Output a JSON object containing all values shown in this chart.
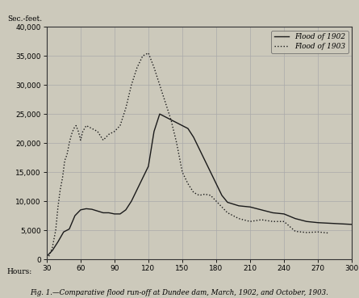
{
  "title": "Fig. 1.—Comparative flood run-off at Dundee dam, March, 1902, and October, 1903.",
  "ylabel": "Sec.-feet.",
  "xlabel": "Hours:",
  "xlim": [
    30,
    300
  ],
  "ylim": [
    0,
    40000
  ],
  "xticks": [
    30,
    60,
    90,
    120,
    150,
    180,
    210,
    240,
    270,
    300
  ],
  "yticks": [
    0,
    5000,
    10000,
    15000,
    20000,
    25000,
    30000,
    35000,
    40000
  ],
  "bg_color": "#ccc9bb",
  "flood_1902_x": [
    30,
    35,
    40,
    45,
    50,
    55,
    60,
    65,
    70,
    75,
    80,
    85,
    90,
    95,
    100,
    105,
    110,
    115,
    120,
    125,
    130,
    135,
    140,
    145,
    150,
    155,
    160,
    165,
    170,
    175,
    180,
    185,
    190,
    195,
    200,
    210,
    220,
    230,
    240,
    250,
    260,
    270,
    280,
    290,
    300
  ],
  "flood_1902_y": [
    500,
    1500,
    3000,
    4700,
    5200,
    7500,
    8500,
    8700,
    8600,
    8300,
    8000,
    8000,
    7800,
    7800,
    8500,
    10000,
    12000,
    14000,
    16000,
    22000,
    25000,
    24500,
    24000,
    23500,
    23000,
    22500,
    21000,
    19000,
    17000,
    15000,
    13000,
    11000,
    9800,
    9500,
    9200,
    9000,
    8500,
    8000,
    7800,
    7000,
    6500,
    6300,
    6200,
    6100,
    6000
  ],
  "flood_1903_x": [
    30,
    32,
    35,
    38,
    40,
    42,
    44,
    46,
    48,
    50,
    52,
    54,
    56,
    58,
    60,
    62,
    65,
    70,
    75,
    80,
    85,
    90,
    95,
    100,
    105,
    110,
    115,
    120,
    125,
    130,
    135,
    140,
    145,
    150,
    155,
    160,
    165,
    170,
    175,
    180,
    185,
    190,
    195,
    200,
    210,
    220,
    230,
    240,
    250,
    260,
    270,
    280
  ],
  "flood_1903_y": [
    200,
    500,
    2000,
    5000,
    9000,
    12000,
    14000,
    17000,
    18000,
    20000,
    21500,
    22500,
    23000,
    22000,
    20500,
    22000,
    23000,
    22500,
    22000,
    20500,
    21500,
    22000,
    23000,
    26000,
    30000,
    33000,
    35000,
    35500,
    33000,
    30000,
    27000,
    24000,
    20000,
    15000,
    13000,
    11500,
    11000,
    11200,
    11000,
    10000,
    9000,
    8000,
    7500,
    7000,
    6500,
    6800,
    6500,
    6500,
    4800,
    4600,
    4700,
    4500
  ],
  "legend_1902": "Flood of 1902",
  "legend_1903": "Flood of 1903",
  "line_color": "#1a1a1a",
  "grid_color": "#aaaaaa",
  "font_family": "serif"
}
